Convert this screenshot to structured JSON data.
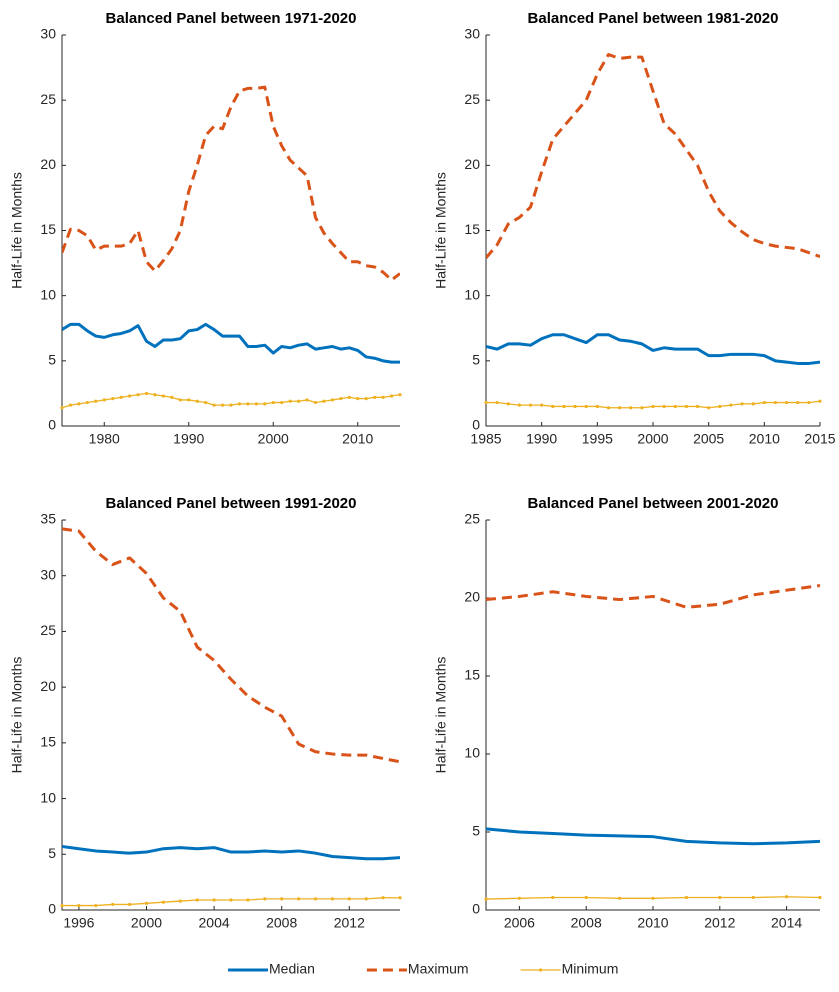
{
  "chart_data": [
    {
      "type": "line",
      "title": "Balanced Panel between 1971-2020",
      "ylabel": "Half-Life in Months",
      "x": [
        1975,
        1976,
        1977,
        1978,
        1979,
        1980,
        1981,
        1982,
        1983,
        1984,
        1985,
        1986,
        1987,
        1988,
        1989,
        1990,
        1991,
        1992,
        1993,
        1994,
        1995,
        1996,
        1997,
        1998,
        1999,
        2000,
        2001,
        2002,
        2003,
        2004,
        2005,
        2006,
        2007,
        2008,
        2009,
        2010,
        2011,
        2012,
        2013,
        2014,
        2015
      ],
      "series": [
        {
          "name": "Median",
          "color": "#0072BD",
          "linestyle": "solid",
          "marker": false,
          "values": [
            7.4,
            7.8,
            7.8,
            7.3,
            6.9,
            6.8,
            7.0,
            7.1,
            7.3,
            7.7,
            6.5,
            6.1,
            6.6,
            6.6,
            6.7,
            7.3,
            7.4,
            7.8,
            7.4,
            6.9,
            6.9,
            6.9,
            6.1,
            6.1,
            6.2,
            5.6,
            6.1,
            6.0,
            6.2,
            6.3,
            5.9,
            6.0,
            6.1,
            5.9,
            6.0,
            5.8,
            5.3,
            5.2,
            5.0,
            4.9,
            4.9
          ]
        },
        {
          "name": "Maximum",
          "color": "#D95319",
          "linestyle": "dashed",
          "marker": false,
          "values": [
            13.3,
            15.1,
            15.0,
            14.6,
            13.5,
            13.8,
            13.8,
            13.8,
            14.0,
            15.0,
            12.6,
            11.9,
            12.7,
            13.6,
            15.0,
            18.0,
            20.0,
            22.3,
            23.0,
            22.8,
            24.5,
            25.7,
            25.9,
            25.9,
            26.0,
            23.0,
            21.5,
            20.4,
            19.8,
            19.2,
            16.0,
            14.8,
            14.0,
            13.3,
            12.6,
            12.6,
            12.3,
            12.2,
            11.8,
            11.2,
            11.7
          ]
        },
        {
          "name": "Minimum",
          "color": "#EDB120",
          "linestyle": "solid",
          "marker": true,
          "values": [
            1.4,
            1.6,
            1.7,
            1.8,
            1.9,
            2.0,
            2.1,
            2.2,
            2.3,
            2.4,
            2.5,
            2.4,
            2.3,
            2.2,
            2.0,
            2.0,
            1.9,
            1.8,
            1.6,
            1.6,
            1.6,
            1.7,
            1.7,
            1.7,
            1.7,
            1.8,
            1.8,
            1.9,
            1.9,
            2.0,
            1.8,
            1.9,
            2.0,
            2.1,
            2.2,
            2.1,
            2.1,
            2.2,
            2.2,
            2.3,
            2.4
          ]
        }
      ],
      "xlim": [
        1975,
        2015
      ],
      "ylim": [
        0,
        30
      ],
      "xticks": [
        1980,
        1990,
        2000,
        2010
      ],
      "yticks": [
        0,
        5,
        10,
        15,
        20,
        25,
        30
      ]
    },
    {
      "type": "line",
      "title": "Balanced Panel between 1981-2020",
      "ylabel": "Half-Life in Months",
      "x": [
        1985,
        1986,
        1987,
        1988,
        1989,
        1990,
        1991,
        1992,
        1993,
        1994,
        1995,
        1996,
        1997,
        1998,
        1999,
        2000,
        2001,
        2002,
        2003,
        2004,
        2005,
        2006,
        2007,
        2008,
        2009,
        2010,
        2011,
        2012,
        2013,
        2014,
        2015
      ],
      "series": [
        {
          "name": "Median",
          "color": "#0072BD",
          "linestyle": "solid",
          "marker": false,
          "values": [
            6.1,
            5.9,
            6.3,
            6.3,
            6.2,
            6.7,
            7.0,
            7.0,
            6.7,
            6.4,
            7.0,
            7.0,
            6.6,
            6.5,
            6.3,
            5.8,
            6.0,
            5.9,
            5.9,
            5.9,
            5.4,
            5.4,
            5.5,
            5.5,
            5.5,
            5.4,
            5.0,
            4.9,
            4.8,
            4.8,
            4.9
          ]
        },
        {
          "name": "Maximum",
          "color": "#D95319",
          "linestyle": "dashed",
          "marker": false,
          "values": [
            12.9,
            13.9,
            15.5,
            16.0,
            16.8,
            19.5,
            22.0,
            23.0,
            24.0,
            25.0,
            27.0,
            28.5,
            28.2,
            28.3,
            28.3,
            25.7,
            23.2,
            22.4,
            21.2,
            20.0,
            18.0,
            16.5,
            15.6,
            14.9,
            14.3,
            14.0,
            13.8,
            13.7,
            13.6,
            13.3,
            13.0
          ]
        },
        {
          "name": "Minimum",
          "color": "#EDB120",
          "linestyle": "solid",
          "marker": true,
          "values": [
            1.8,
            1.8,
            1.7,
            1.6,
            1.6,
            1.6,
            1.5,
            1.5,
            1.5,
            1.5,
            1.5,
            1.4,
            1.4,
            1.4,
            1.4,
            1.5,
            1.5,
            1.5,
            1.5,
            1.5,
            1.4,
            1.5,
            1.6,
            1.7,
            1.7,
            1.8,
            1.8,
            1.8,
            1.8,
            1.8,
            1.9
          ]
        }
      ],
      "xlim": [
        1985,
        2015
      ],
      "ylim": [
        0,
        30
      ],
      "xticks": [
        1985,
        1990,
        1995,
        2000,
        2005,
        2010,
        2015
      ],
      "yticks": [
        0,
        5,
        10,
        15,
        20,
        25,
        30
      ]
    },
    {
      "type": "line",
      "title": "Balanced Panel between 1991-2020",
      "ylabel": "Half-Life in Months",
      "x": [
        1995,
        1996,
        1997,
        1998,
        1999,
        2000,
        2001,
        2002,
        2003,
        2004,
        2005,
        2006,
        2007,
        2008,
        2009,
        2010,
        2011,
        2012,
        2013,
        2014,
        2015
      ],
      "series": [
        {
          "name": "Median",
          "color": "#0072BD",
          "linestyle": "solid",
          "marker": false,
          "values": [
            5.7,
            5.5,
            5.3,
            5.2,
            5.1,
            5.2,
            5.5,
            5.6,
            5.5,
            5.6,
            5.2,
            5.2,
            5.3,
            5.2,
            5.3,
            5.1,
            4.8,
            4.7,
            4.6,
            4.6,
            4.7
          ]
        },
        {
          "name": "Maximum",
          "color": "#D95319",
          "linestyle": "dashed",
          "marker": false,
          "values": [
            34.2,
            34.0,
            32.2,
            31.0,
            31.6,
            30.2,
            28.0,
            26.8,
            23.6,
            22.4,
            20.7,
            19.2,
            18.2,
            17.4,
            14.9,
            14.2,
            14.0,
            13.9,
            13.9,
            13.6,
            13.3
          ]
        },
        {
          "name": "Minimum",
          "color": "#EDB120",
          "linestyle": "solid",
          "marker": true,
          "values": [
            0.4,
            0.4,
            0.4,
            0.5,
            0.5,
            0.6,
            0.7,
            0.8,
            0.9,
            0.9,
            0.9,
            0.9,
            1.0,
            1.0,
            1.0,
            1.0,
            1.0,
            1.0,
            1.0,
            1.1,
            1.1
          ]
        }
      ],
      "xlim": [
        1995,
        2015
      ],
      "ylim": [
        0,
        35
      ],
      "xticks": [
        1996,
        2000,
        2004,
        2008,
        2012
      ],
      "yticks": [
        0,
        5,
        10,
        15,
        20,
        25,
        30,
        35
      ]
    },
    {
      "type": "line",
      "title": "Balanced Panel between 2001-2020",
      "ylabel": "Half-Life in Months",
      "x": [
        2005,
        2006,
        2007,
        2008,
        2009,
        2010,
        2011,
        2012,
        2013,
        2014,
        2015
      ],
      "series": [
        {
          "name": "Median",
          "color": "#0072BD",
          "linestyle": "solid",
          "marker": false,
          "values": [
            5.2,
            5.0,
            4.9,
            4.8,
            4.75,
            4.7,
            4.4,
            4.3,
            4.25,
            4.3,
            4.4
          ]
        },
        {
          "name": "Maximum",
          "color": "#D95319",
          "linestyle": "dashed",
          "marker": false,
          "values": [
            19.9,
            20.1,
            20.4,
            20.1,
            19.9,
            20.1,
            19.4,
            19.6,
            20.2,
            20.5,
            20.8
          ]
        },
        {
          "name": "Minimum",
          "color": "#EDB120",
          "linestyle": "solid",
          "marker": true,
          "values": [
            0.7,
            0.75,
            0.8,
            0.8,
            0.75,
            0.75,
            0.8,
            0.8,
            0.8,
            0.85,
            0.8
          ]
        }
      ],
      "xlim": [
        2005,
        2015
      ],
      "ylim": [
        0,
        25
      ],
      "xticks": [
        2006,
        2008,
        2010,
        2012,
        2014
      ],
      "yticks": [
        0,
        5,
        10,
        15,
        20,
        25
      ]
    }
  ]
}
